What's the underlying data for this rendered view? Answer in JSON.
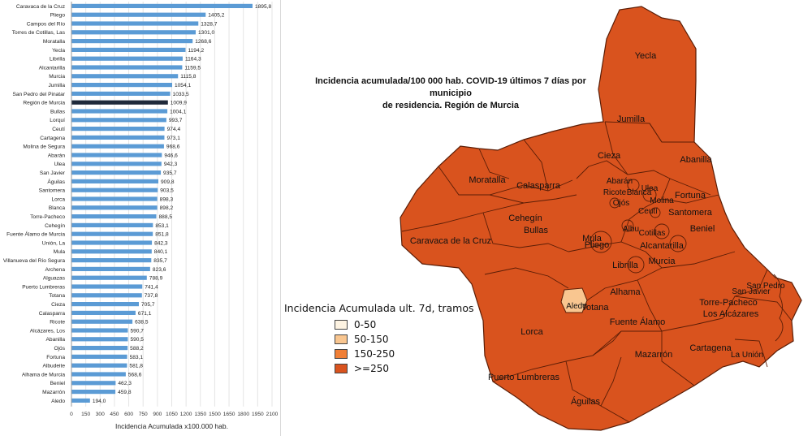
{
  "chart_data": {
    "type": "bar",
    "orientation": "horizontal",
    "categories": [
      "Caravaca de la Cruz",
      "Pliego",
      "Campos del Río",
      "Torres de Cotillas, Las",
      "Moratalla",
      "Yecla",
      "Librilla",
      "Alcantarilla",
      "Murcia",
      "Jumilla",
      "San Pedro del Pinatar",
      "Región de Murcia",
      "Bullas",
      "Lorquí",
      "Ceutí",
      "Cartagena",
      "Molina de Segura",
      "Abarán",
      "Ulea",
      "San Javier",
      "Águilas",
      "Santomera",
      "Lorca",
      "Blanca",
      "Torre-Pacheco",
      "Cehegín",
      "Fuente Álamo de Murcia",
      "Unión, La",
      "Mula",
      "Villanueva del Río Segura",
      "Archena",
      "Alguazas",
      "Puerto Lumbreras",
      "Totana",
      "Cieza",
      "Calasparra",
      "Ricote",
      "Alcázares, Los",
      "Abanilla",
      "Ojós",
      "Fortuna",
      "Albudeite",
      "Alhama de Murcia",
      "Beniel",
      "Mazarrón",
      "Aledo"
    ],
    "values": [
      1895.8,
      1405.2,
      1328.7,
      1301.0,
      1268.6,
      1194.2,
      1164.3,
      1159.5,
      1115.8,
      1054.1,
      1033.5,
      1009.9,
      1004.1,
      993.7,
      974.4,
      973.1,
      968.6,
      946.6,
      942.3,
      935.7,
      909.8,
      903.5,
      898.3,
      898.2,
      888.5,
      853.1,
      851.8,
      842.3,
      840.1,
      835.7,
      823.6,
      788.9,
      741.4,
      737.8,
      705.7,
      671.1,
      638.5,
      590.7,
      590.5,
      588.2,
      583.1,
      581.8,
      568.6,
      462.3,
      459.8,
      194.0
    ],
    "value_labels": [
      "1895,8",
      "1405,2",
      "1328,7",
      "1301,0",
      "1268,6",
      "1194,2",
      "1164,3",
      "1159,5",
      "1115,8",
      "1054,1",
      "1033,5",
      "1009,9",
      "1004,1",
      "993,7",
      "974,4",
      "973,1",
      "968,6",
      "946,6",
      "942,3",
      "935,7",
      "909,8",
      "903,5",
      "898,3",
      "898,2",
      "888,5",
      "853,1",
      "851,8",
      "842,3",
      "840,1",
      "835,7",
      "823,6",
      "788,9",
      "741,4",
      "737,8",
      "705,7",
      "671,1",
      "638,5",
      "590,7",
      "590,5",
      "588,2",
      "583,1",
      "581,8",
      "568,6",
      "462,3",
      "459,8",
      "194,0"
    ],
    "highlight_category": "Región de Murcia",
    "xlabel": "Incidencia Acumulada x100.000 hab.",
    "xlim": [
      0,
      2100
    ],
    "xticks": [
      0,
      150,
      300,
      450,
      600,
      750,
      900,
      1050,
      1200,
      1350,
      1500,
      1650,
      1800,
      1950,
      2100
    ],
    "grid": true,
    "colors": {
      "bar": "#5b9bd5",
      "highlight": "#1f2a3a"
    }
  },
  "map": {
    "title_line1": "Incidencia acumulada/100 000 hab. COVID-19 últimos 7 días por municipio",
    "title_line2": "de residencia. Región de Murcia",
    "fill_color": "#d9531e",
    "aledo_color": "#f9c690",
    "labels": [
      "Yecla",
      "Jumilla",
      "Cieza",
      "Abarán",
      "Abanilla",
      "Calasparra",
      "Blanca",
      "Fortuna",
      "Moratalla",
      "Ricote",
      "Ulea",
      "Molina",
      "Ojós",
      "Ceutí",
      "Santomera",
      "Cehegín",
      "Bullas",
      "Albu",
      "Cotillas",
      "Beniel",
      "Caravaca de la Cruz",
      "Mula",
      "Pliego",
      "Alcantarilla",
      "Librilla",
      "Murcia",
      "San Pedro",
      "San Javier",
      "Aledo",
      "Totana",
      "Alhama",
      "Torre-Pacheco",
      "Los Alcázares",
      "Fuente Álamo",
      "Lorca",
      "Cartagena",
      "La Unión",
      "Mazarrón",
      "Puerto Lumbreras",
      "Águilas"
    ],
    "legend": {
      "title": "Incidencia Acumulada ult. 7d, tramos",
      "items": [
        {
          "label": "0-50",
          "color": "#fdf3e2"
        },
        {
          "label": "50-150",
          "color": "#f9c690"
        },
        {
          "label": "150-250",
          "color": "#f07f36"
        },
        {
          "label": ">=250",
          "color": "#d9531e"
        }
      ]
    }
  }
}
